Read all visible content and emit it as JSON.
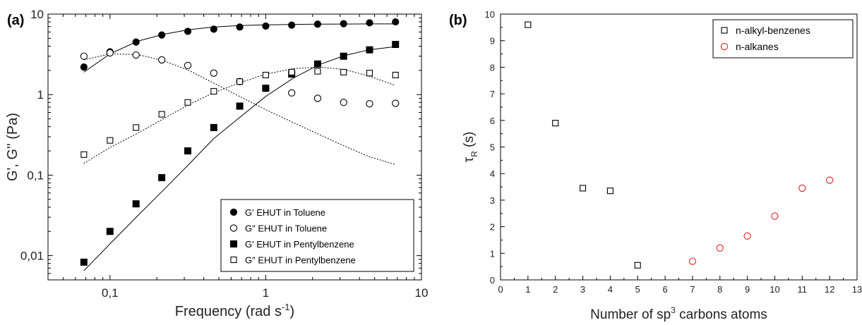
{
  "chart_data": [
    {
      "panel_label": "(a)",
      "type": "scatter",
      "xscale": "log",
      "yscale": "log",
      "xlim": [
        0.04,
        10
      ],
      "ylim": [
        0.005,
        10
      ],
      "xticks": [
        {
          "v": 0.1,
          "label": "0,1"
        },
        {
          "v": 1,
          "label": "1"
        },
        {
          "v": 10,
          "label": "10"
        }
      ],
      "yticks": [
        {
          "v": 0.01,
          "label": "0,01"
        },
        {
          "v": 0.1,
          "label": "0,1"
        },
        {
          "v": 1,
          "label": "1"
        },
        {
          "v": 10,
          "label": "10"
        }
      ],
      "xlabel_main": "Frequency (rad s",
      "xlabel_sup": "-1",
      "xlabel_end": ")",
      "ylabel": "G', G'' (Pa)",
      "legend_position": "bottom-right",
      "series": [
        {
          "name": "G'  EHUT in Toluene",
          "marker": "filled-circle",
          "color": "#000000",
          "x": [
            0.068,
            0.1,
            0.147,
            0.215,
            0.316,
            0.464,
            0.681,
            1.0,
            1.468,
            2.154,
            3.162,
            4.642,
            6.813
          ],
          "y": [
            2.2,
            3.4,
            4.5,
            5.5,
            6.1,
            6.5,
            6.9,
            7.1,
            7.3,
            7.5,
            7.6,
            7.8,
            8.0
          ]
        },
        {
          "name": "G\"  EHUT in Toluene",
          "marker": "open-circle",
          "color": "#000000",
          "x": [
            0.068,
            0.1,
            0.147,
            0.215,
            0.316,
            0.464,
            0.681,
            1.0,
            1.468,
            2.154,
            3.162,
            4.642,
            6.813
          ],
          "y": [
            3.0,
            3.3,
            3.1,
            2.7,
            2.3,
            1.85,
            1.45,
            1.2,
            1.05,
            0.9,
            0.8,
            0.77,
            0.78
          ]
        },
        {
          "name": "G'   EHUT in Pentylbenzene",
          "marker": "filled-square",
          "color": "#000000",
          "x": [
            0.068,
            0.1,
            0.147,
            0.215,
            0.316,
            0.464,
            0.681,
            1.0,
            1.468,
            2.154,
            3.162,
            4.642,
            6.813
          ],
          "y": [
            0.0083,
            0.02,
            0.044,
            0.093,
            0.2,
            0.39,
            0.72,
            1.2,
            1.8,
            2.4,
            3.0,
            3.6,
            4.2
          ]
        },
        {
          "name": "G\"  EHUT in Pentylbenzene",
          "marker": "open-square",
          "color": "#000000",
          "x": [
            0.068,
            0.1,
            0.147,
            0.215,
            0.316,
            0.464,
            0.681,
            1.0,
            1.468,
            2.154,
            3.162,
            4.642,
            6.813
          ],
          "y": [
            0.18,
            0.27,
            0.39,
            0.57,
            0.8,
            1.1,
            1.45,
            1.75,
            1.9,
            1.95,
            1.9,
            1.85,
            1.75
          ]
        }
      ],
      "fit_lines": [
        {
          "style": "solid",
          "x": [
            0.068,
            0.1,
            0.15,
            0.22,
            0.32,
            0.46,
            0.68,
            1.0,
            1.5,
            2.2,
            3.2,
            4.6,
            6.8
          ],
          "y": [
            1.9,
            3.2,
            4.6,
            5.6,
            6.4,
            6.9,
            7.2,
            7.35,
            7.45,
            7.5,
            7.52,
            7.55,
            7.55
          ]
        },
        {
          "style": "dotted",
          "x": [
            0.068,
            0.1,
            0.15,
            0.22,
            0.32,
            0.46,
            0.68,
            1.0,
            1.5,
            2.2,
            3.2,
            4.6,
            6.8
          ],
          "y": [
            2.7,
            3.2,
            3.15,
            2.65,
            2.0,
            1.4,
            0.95,
            0.65,
            0.45,
            0.32,
            0.23,
            0.17,
            0.135
          ]
        },
        {
          "style": "solid",
          "x": [
            0.068,
            0.1,
            0.15,
            0.22,
            0.32,
            0.46,
            0.68,
            1.0,
            1.5,
            2.2,
            3.2,
            4.6,
            6.8
          ],
          "y": [
            0.0065,
            0.014,
            0.031,
            0.065,
            0.135,
            0.28,
            0.52,
            0.95,
            1.6,
            2.35,
            3.05,
            3.6,
            3.95
          ]
        },
        {
          "style": "dotted",
          "x": [
            0.068,
            0.1,
            0.15,
            0.22,
            0.32,
            0.46,
            0.68,
            1.0,
            1.5,
            2.2,
            3.2,
            4.6,
            6.8
          ],
          "y": [
            0.14,
            0.22,
            0.33,
            0.5,
            0.75,
            1.05,
            1.4,
            1.8,
            2.1,
            2.2,
            2.05,
            1.7,
            1.3
          ]
        }
      ]
    },
    {
      "panel_label": "(b)",
      "type": "scatter",
      "xlim": [
        0,
        13
      ],
      "ylim": [
        0,
        10
      ],
      "xticks": [
        0,
        1,
        2,
        3,
        4,
        5,
        6,
        7,
        8,
        9,
        10,
        11,
        12,
        13
      ],
      "yticks": [
        0,
        1,
        2,
        3,
        4,
        5,
        6,
        7,
        8,
        9,
        10
      ],
      "xlabel_main": "Number of sp",
      "xlabel_sup": "3",
      "xlabel_end": " carbons atoms",
      "ylabel_main": "τ",
      "ylabel_sub": "R",
      "ylabel_end": " (s)",
      "legend_position": "top-right",
      "series": [
        {
          "name": "n-alkyl-benzenes",
          "marker": "open-square",
          "color": "#000000",
          "x": [
            1,
            2,
            3,
            4,
            5
          ],
          "y": [
            9.6,
            5.9,
            3.45,
            3.35,
            0.55
          ]
        },
        {
          "name": "n-alkanes",
          "marker": "open-circle",
          "color": "#e02020",
          "x": [
            7,
            8,
            9,
            10,
            11,
            12
          ],
          "y": [
            0.7,
            1.2,
            1.65,
            2.4,
            3.45,
            3.75
          ]
        }
      ]
    }
  ]
}
